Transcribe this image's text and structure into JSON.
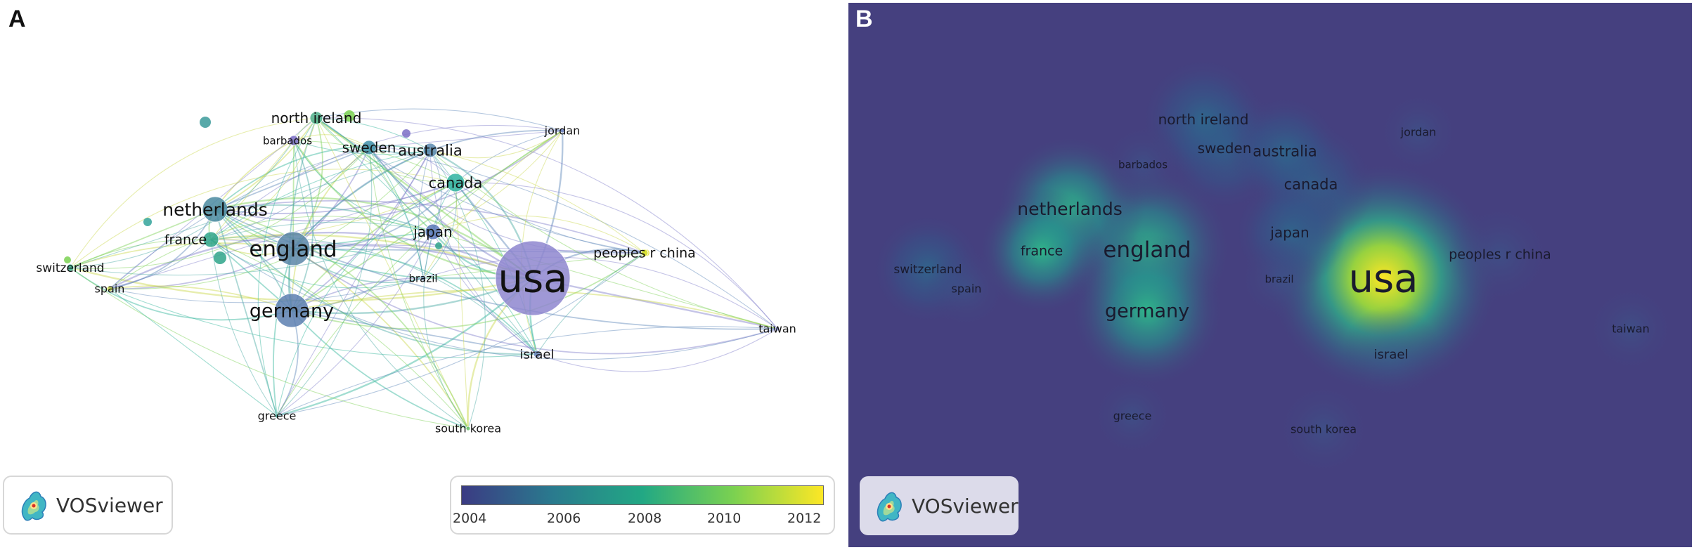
{
  "panels": [
    {
      "letter": "A"
    },
    {
      "letter": "B"
    }
  ],
  "branding": {
    "label": "VOSviewer"
  },
  "color_scale": {
    "ticks": [
      "2004",
      "2006",
      "2008",
      "2010",
      "2012"
    ],
    "colors": [
      "#3b3b83",
      "#2a7a8e",
      "#22a884",
      "#7ad151",
      "#fde725"
    ]
  },
  "nodes": [
    {
      "label": "usa",
      "weight": 100,
      "color": "#8e86cf"
    },
    {
      "label": "england",
      "weight": 30,
      "color": "#5b86a8"
    },
    {
      "label": "germany",
      "weight": 28,
      "color": "#5c7fb0"
    },
    {
      "label": "netherlands",
      "weight": 24,
      "color": "#4a8aa0"
    },
    {
      "label": "canada",
      "weight": 18,
      "color": "#2fb3a0"
    },
    {
      "label": "japan",
      "weight": 14,
      "color": "#5b78b8"
    },
    {
      "label": "france",
      "weight": 14,
      "color": "#2ea58a"
    },
    {
      "label": "sweden",
      "weight": 12,
      "color": "#3f8fa8"
    },
    {
      "label": "australia",
      "weight": 12,
      "color": "#5b8ab0"
    },
    {
      "label": "north ireland",
      "weight": 12,
      "color": "#4fae8a"
    },
    {
      "label": "peoples r china",
      "weight": 8,
      "color": "#d6e032"
    },
    {
      "label": "israel",
      "weight": 7,
      "color": "#7088c0"
    },
    {
      "label": "switzerland",
      "weight": 7,
      "color": "#3ab38b"
    },
    {
      "label": "spain",
      "weight": 6,
      "color": "#c9d84a"
    },
    {
      "label": "brazil",
      "weight": 5,
      "color": "#6c8fb0"
    },
    {
      "label": "barbados",
      "weight": 5,
      "color": "#7b6ec6"
    },
    {
      "label": "jordan",
      "weight": 4,
      "color": "#6f80c6"
    },
    {
      "label": "greece",
      "weight": 4,
      "color": "#4aa89a"
    },
    {
      "label": "south korea",
      "weight": 4,
      "color": "#6abf6a"
    },
    {
      "label": "taiwan",
      "weight": 4,
      "color": "#8b8fd6"
    }
  ]
}
